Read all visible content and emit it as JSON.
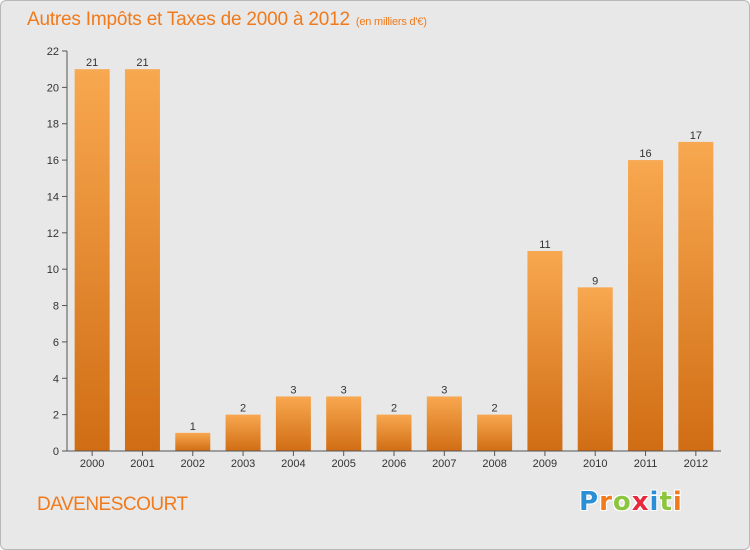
{
  "header": {
    "title": "Autres Impôts et Taxes de 2000 à 2012",
    "unit": "(en milliers d'€)"
  },
  "footer": {
    "commune": "DAVENESCOURT",
    "brand_letters": [
      "P",
      "r",
      "o",
      "x",
      "i",
      "t",
      "i"
    ],
    "brand_colors": [
      "#2a8fd6",
      "#f07a1c",
      "#8cc63f",
      "#e8283c",
      "#2a8fd6",
      "#8cc63f",
      "#f07a1c"
    ]
  },
  "colors": {
    "bar_light": "#f8a850",
    "bar_dark": "#d06d14",
    "accent": "#f07a1c",
    "axis_text": "#333333"
  },
  "chart_data": {
    "type": "bar",
    "categories": [
      "2000",
      "2001",
      "2002",
      "2003",
      "2004",
      "2005",
      "2006",
      "2007",
      "2008",
      "2009",
      "2010",
      "2011",
      "2012"
    ],
    "values": [
      21,
      21,
      1,
      2,
      3,
      3,
      2,
      3,
      2,
      11,
      9,
      16,
      17
    ],
    "value_labels": [
      "21",
      "21",
      "1",
      "2",
      "3",
      "3",
      "2",
      "3",
      "2",
      "11",
      "9",
      "16",
      "17"
    ],
    "yticks": [
      "0",
      "2",
      "4",
      "6",
      "8",
      "10",
      "12",
      "14",
      "16",
      "18",
      "20",
      "22"
    ],
    "ylim": [
      0,
      22
    ],
    "grid": false,
    "legend": "none"
  }
}
